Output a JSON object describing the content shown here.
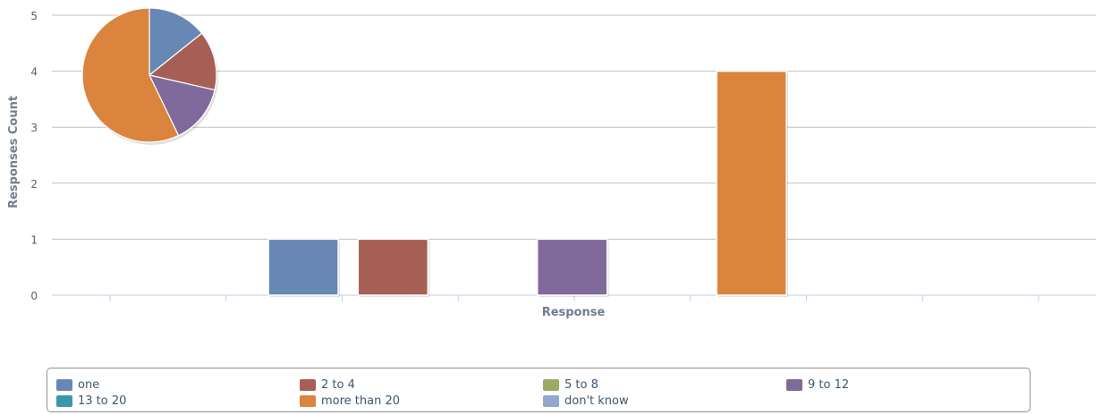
{
  "chart_data": {
    "type": "bar",
    "title": "",
    "xlabel": "Response",
    "ylabel": "Responses Count",
    "ylim": [
      0,
      5
    ],
    "yticks": [
      0,
      1,
      2,
      3,
      4,
      5
    ],
    "grid": true,
    "legend_position": "bottom",
    "series": [
      {
        "name": "one",
        "value": 1,
        "color": "#6788b5"
      },
      {
        "name": "2 to 4",
        "value": 1,
        "color": "#a65f55"
      },
      {
        "name": "5 to 8",
        "value": 0,
        "color": "#9aab64"
      },
      {
        "name": "9 to 12",
        "value": 1,
        "color": "#80699b"
      },
      {
        "name": "13 to 20",
        "value": 0,
        "color": "#3d96ae"
      },
      {
        "name": "more than 20",
        "value": 4,
        "color": "#db843d"
      },
      {
        "name": "don't know",
        "value": 0,
        "color": "#92a8cd"
      }
    ],
    "inset_pie": {
      "type": "pie",
      "slices": [
        {
          "name": "one",
          "value": 1
        },
        {
          "name": "2 to 4",
          "value": 1
        },
        {
          "name": "9 to 12",
          "value": 1
        },
        {
          "name": "more than 20",
          "value": 4
        }
      ]
    }
  }
}
